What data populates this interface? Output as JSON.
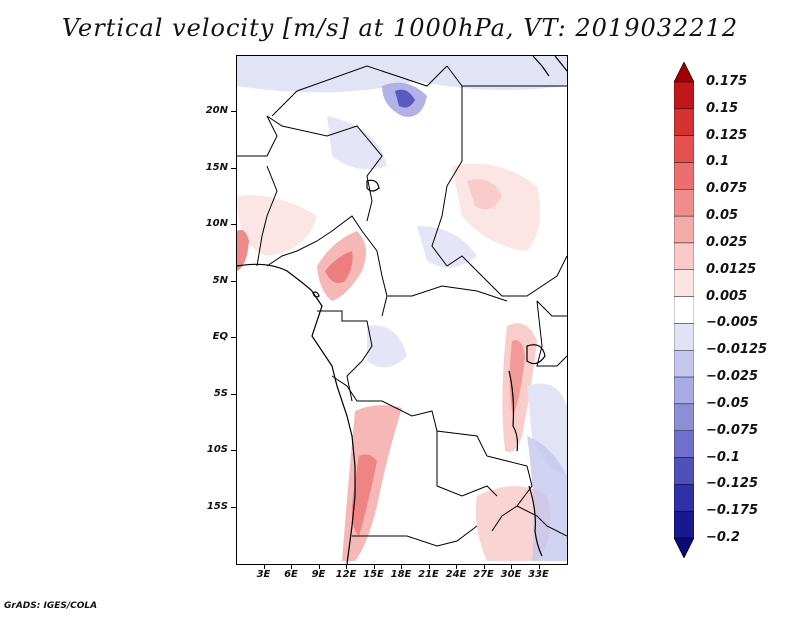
{
  "title": "Vertical velocity [m/s] at 1000hPa, VT: 2019032212",
  "footer": "GrADS: IGES/COLA",
  "map": {
    "lon_range": [
      0,
      36
    ],
    "lat_range": [
      -20,
      25
    ],
    "lat_ticks": [
      {
        "label": "20N",
        "value": 20
      },
      {
        "label": "15N",
        "value": 15
      },
      {
        "label": "10N",
        "value": 10
      },
      {
        "label": "5N",
        "value": 5
      },
      {
        "label": "EQ",
        "value": 0
      },
      {
        "label": "5S",
        "value": -5
      },
      {
        "label": "10S",
        "value": -10
      },
      {
        "label": "15S",
        "value": -15
      }
    ],
    "lon_ticks": [
      {
        "label": "3E",
        "value": 3
      },
      {
        "label": "6E",
        "value": 6
      },
      {
        "label": "9E",
        "value": 9
      },
      {
        "label": "12E",
        "value": 12
      },
      {
        "label": "15E",
        "value": 15
      },
      {
        "label": "18E",
        "value": 18
      },
      {
        "label": "21E",
        "value": 21
      },
      {
        "label": "24E",
        "value": 24
      },
      {
        "label": "27E",
        "value": 27
      },
      {
        "label": "30E",
        "value": 30
      },
      {
        "label": "33E",
        "value": 33
      }
    ]
  },
  "colorbar": {
    "labels": [
      "0.175",
      "0.15",
      "0.125",
      "0.1",
      "0.075",
      "0.05",
      "0.025",
      "0.0125",
      "0.005",
      "−0.005",
      "−0.0125",
      "−0.025",
      "−0.05",
      "−0.075",
      "−0.1",
      "−0.125",
      "−0.175",
      "−0.2"
    ],
    "colors": [
      "#a00000",
      "#c01818",
      "#d63232",
      "#e65050",
      "#ec6e6e",
      "#f08c8c",
      "#f5aaaa",
      "#f9c8c8",
      "#fce4e4",
      "#ffffff",
      "#e2e2f6",
      "#c6c6ee",
      "#aaaae4",
      "#8e8ed8",
      "#7070cc",
      "#5050bc",
      "#3030a8",
      "#181890",
      "#0a0a78"
    ]
  }
}
